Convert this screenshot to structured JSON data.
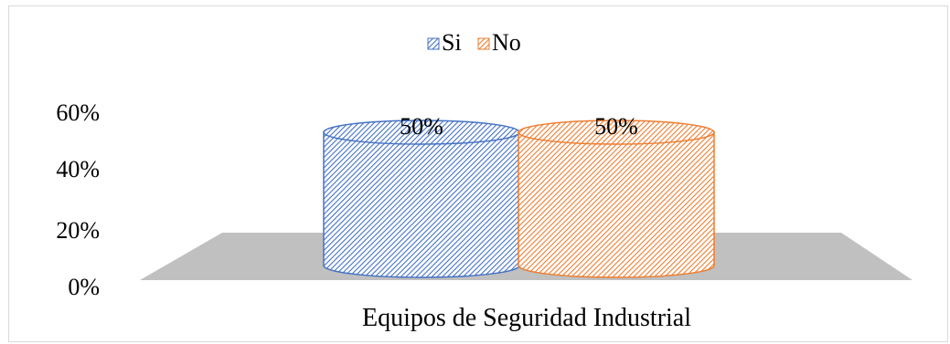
{
  "chart_data": {
    "type": "bar",
    "subtype": "3d-cylinder",
    "categories": [
      "Equipos de Seguridad Industrial"
    ],
    "series": [
      {
        "name": "Si",
        "values": [
          50
        ],
        "color": "#4472c4",
        "pattern": "diagonal-hatch"
      },
      {
        "name": "No",
        "values": [
          50
        ],
        "color": "#ed7d31",
        "pattern": "diagonal-hatch"
      }
    ],
    "data_labels": [
      "50%",
      "50%"
    ],
    "yticks": [
      "0%",
      "20%",
      "40%",
      "60%"
    ],
    "ylim": [
      0,
      60
    ],
    "legend_position": "top",
    "grid": false,
    "floor_color": "#c0c0c0"
  }
}
